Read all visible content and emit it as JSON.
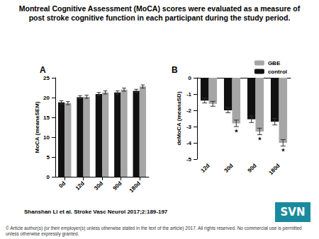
{
  "title": "Montreal Cognitive Assessment (MoCA) scores were evaluated as a measure of post stroke cognitive function in each participant during the study period.",
  "citation": "Shanshan Li et al. Stroke Vasc Neurol 2017;2:189-197",
  "logo": "SVN",
  "copyright": "© Article author(s) (or their employer(s) unless otherwise stated in the text of the article) 2017. All rights reserved. No commercial use is permitted unless otherwise expressly granted.",
  "chart_data": [
    {
      "type": "bar",
      "title": "A",
      "y_label": "MoCA (mean±SEM)",
      "categories": [
        "0d",
        "12d",
        "30d",
        "90d",
        "180d"
      ],
      "series": [
        {
          "name": "control",
          "color": "#111111",
          "values": [
            18.8,
            20.1,
            20.9,
            21.3,
            21.7
          ],
          "errors": [
            0.4,
            0.4,
            0.4,
            0.4,
            0.4
          ]
        },
        {
          "name": "GBE",
          "color": "#a6a6a6",
          "values": [
            18.6,
            20.2,
            21.3,
            22.0,
            22.8
          ],
          "errors": [
            0.4,
            0.4,
            0.4,
            0.4,
            0.4
          ]
        }
      ],
      "ylim": [
        0,
        25
      ],
      "yticks": [
        0,
        5,
        10,
        15,
        20,
        25
      ],
      "grid": false
    },
    {
      "type": "bar",
      "title": "B",
      "y_label": "deMoCA (mean±SD)",
      "categories": [
        "12d",
        "30d",
        "90d",
        "180d"
      ],
      "series": [
        {
          "name": "control",
          "color": "#111111",
          "values": [
            -1.4,
            -2.0,
            -2.55,
            -2.7
          ],
          "errors": [
            0.15,
            0.15,
            0.2,
            0.2
          ]
        },
        {
          "name": "GBE",
          "color": "#a6a6a6",
          "values": [
            -1.6,
            -2.8,
            -3.3,
            -4.0
          ],
          "errors": [
            0.15,
            0.2,
            0.2,
            0.2
          ]
        }
      ],
      "annotations": [
        {
          "category": "30d",
          "series": "GBE",
          "text": "*"
        },
        {
          "category": "90d",
          "series": "GBE",
          "text": "*"
        },
        {
          "category": "180d",
          "series": "GBE",
          "text": "*"
        }
      ],
      "legend": "upper right",
      "legend_order": [
        "GBE",
        "control"
      ],
      "ylim": [
        -5,
        0
      ],
      "yticks": [
        0,
        -1,
        -2,
        -3,
        -4,
        -5
      ],
      "grid": false
    }
  ]
}
